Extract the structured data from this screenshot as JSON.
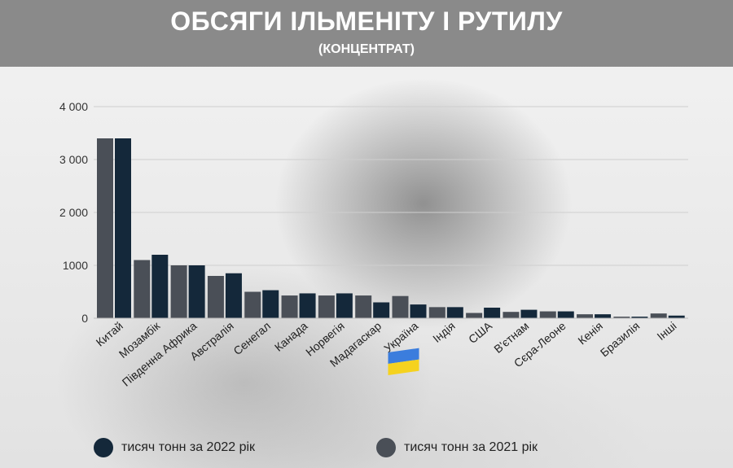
{
  "header": {
    "title": "ОБСЯГИ ІЛЬМЕНІТУ І РУТИЛУ",
    "subtitle": "(КОНЦЕНТРАТ)"
  },
  "legend": {
    "label_2022": "тисяч тонн за 2022 рік",
    "label_2021": "тисяч тонн за 2021 рік"
  },
  "colors": {
    "series_2021": "#4a4f57",
    "series_2022": "#14283a",
    "gridline": "#cfcfcf",
    "header_bg": "#8a8a8a"
  },
  "chart_data": {
    "type": "bar",
    "ylim": [
      0,
      4000
    ],
    "yticks": [
      0,
      1000,
      2000,
      3000,
      4000
    ],
    "ytick_labels": [
      "0",
      "1000",
      "2 000",
      "3 000",
      "4 000"
    ],
    "grid": true,
    "legend_position": "bottom",
    "categories": [
      "Китай",
      "Мозамбік",
      "Південна Африка",
      "Австралія",
      "Сенегал",
      "Канада",
      "Норвегія",
      "Мадагаскар",
      "Україна",
      "Індія",
      "США",
      "В'єтнам",
      "Сєра-Леоне",
      "Кенія",
      "Бразилія",
      "Інші"
    ],
    "series": [
      {
        "name": "тисяч тонн за 2021 рік",
        "values": [
          3400,
          1100,
          1000,
          800,
          500,
          430,
          430,
          430,
          420,
          210,
          100,
          120,
          130,
          75,
          30,
          90
        ]
      },
      {
        "name": "тисяч тонн за 2022 рік",
        "values": [
          3400,
          1200,
          1000,
          850,
          530,
          470,
          470,
          300,
          260,
          210,
          200,
          160,
          130,
          75,
          30,
          50
        ]
      }
    ],
    "ukraine_flag_colors": [
      "#3b7ddd",
      "#f5d21f"
    ]
  }
}
